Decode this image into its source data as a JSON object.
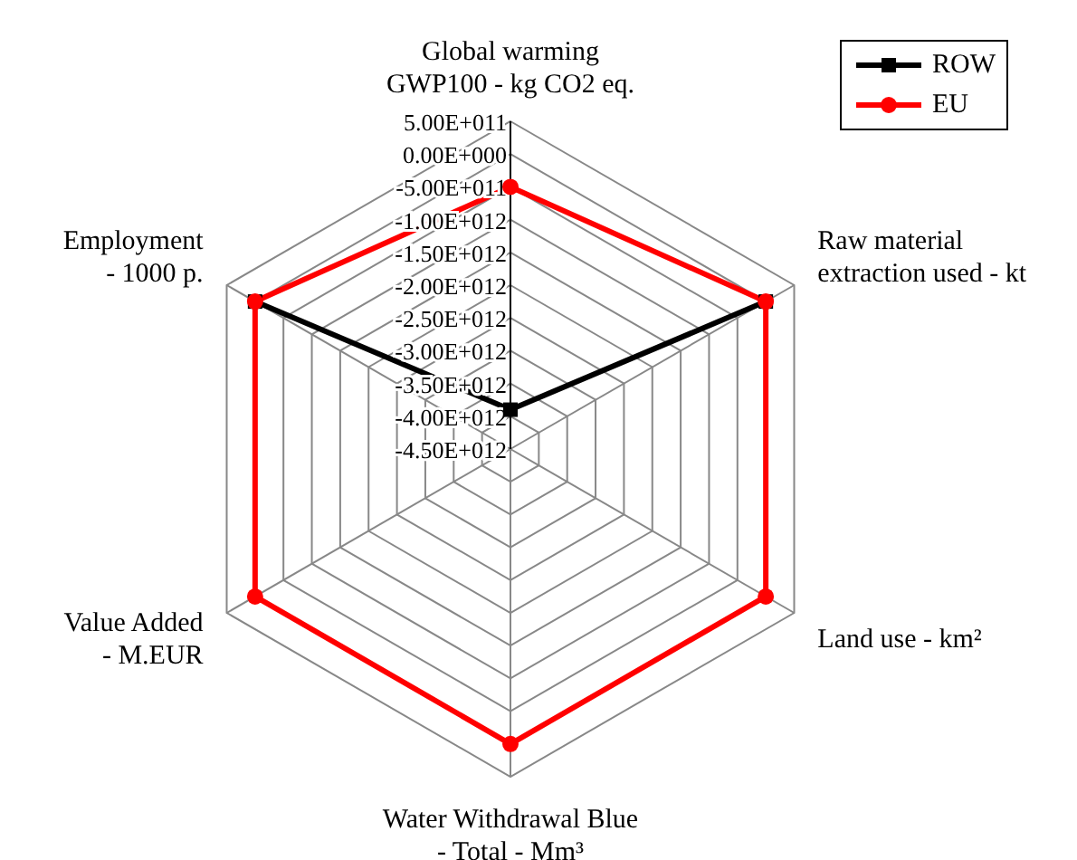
{
  "chart_data": {
    "type": "radar",
    "categories": [
      "Global warming\nGWP100 - kg CO2 eq.",
      "Raw material\nextraction used - kt",
      "Land use - km²",
      "Water Withdrawal Blue\n- Total - Mm³",
      "Value Added\n- M.EUR",
      "Employment\n- 1000 p."
    ],
    "series": [
      {
        "name": "ROW",
        "color": "#000000",
        "marker": "square",
        "values": [
          -3900000000000.0,
          0,
          null,
          null,
          null,
          0
        ]
      },
      {
        "name": "EU",
        "color": "#ff0000",
        "marker": "circle",
        "values": [
          -500000000000.0,
          0,
          0,
          0,
          0,
          0
        ]
      }
    ],
    "ylim": [
      -4500000000000.0,
      500000000000.0
    ],
    "yticks": [
      {
        "value": 500000000000.0,
        "label": "5.00E+011"
      },
      {
        "value": 0,
        "label": "0.00E+000"
      },
      {
        "value": -500000000000.0,
        "label": "-5.00E+011"
      },
      {
        "value": -1000000000000.0,
        "label": "-1.00E+012"
      },
      {
        "value": -1500000000000.0,
        "label": "-1.50E+012"
      },
      {
        "value": -2000000000000.0,
        "label": "-2.00E+012"
      },
      {
        "value": -2500000000000.0,
        "label": "-2.50E+012"
      },
      {
        "value": -3000000000000.0,
        "label": "-3.00E+012"
      },
      {
        "value": -3500000000000.0,
        "label": "-3.50E+012"
      },
      {
        "value": -4000000000000.0,
        "label": "-4.00E+012"
      },
      {
        "value": -4500000000000.0,
        "label": "-4.50E+012"
      }
    ],
    "grid": true,
    "legend": "top right"
  }
}
